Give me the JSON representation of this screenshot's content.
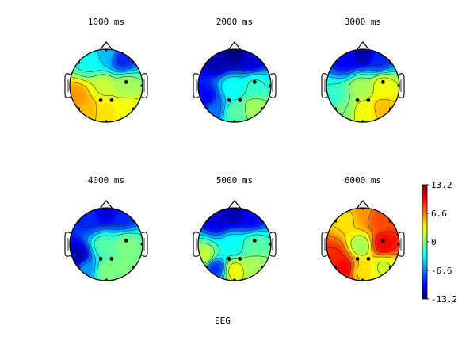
{
  "chart_data": {
    "type": "heatmap",
    "subtype": "eeg-scalp-topography",
    "caption": "EEG",
    "colormap": "jet",
    "clim": [
      -13.2,
      13.2
    ],
    "colorbar": {
      "ticks": [
        13.2,
        6.6,
        0,
        -6.6,
        -13.2
      ],
      "tick_labels": [
        "13.2",
        "6.6",
        "0",
        "-6.6",
        "-13.2"
      ],
      "placement": "right"
    },
    "grid": false,
    "maps": [
      {
        "title": "1000 ms",
        "scalp_values": {
          "frontal_left": -3,
          "frontal_center": -5,
          "frontal_right": -9,
          "left_temporal": 6,
          "center": 2,
          "right": 1,
          "posterior_left": 5,
          "posterior_center": 4,
          "posterior_right": 3
        },
        "electrodes_marked": 3
      },
      {
        "title": "2000 ms",
        "scalp_values": {
          "frontal_left": -12,
          "frontal_center": -13,
          "frontal_right": -11,
          "left_temporal": -10,
          "center": -3,
          "right": -2,
          "posterior_left": -7,
          "posterior_center": -1,
          "posterior_right": 1
        },
        "electrodes_marked": 3
      },
      {
        "title": "3000 ms",
        "scalp_values": {
          "frontal_left": -10,
          "frontal_center": -12,
          "frontal_right": -9,
          "left_temporal": -2,
          "center": 1,
          "right": 3,
          "posterior_left": 0,
          "posterior_center": 3,
          "posterior_right": 5
        },
        "electrodes_marked": 3
      },
      {
        "title": "4000 ms",
        "scalp_values": {
          "frontal_left": -9,
          "frontal_center": -11,
          "frontal_right": -9,
          "left_temporal": -12,
          "center": -1,
          "right": 0,
          "posterior_left": -6,
          "posterior_center": 0,
          "posterior_right": 0
        },
        "electrodes_marked": 3
      },
      {
        "title": "5000 ms",
        "scalp_values": {
          "frontal_left": -11,
          "frontal_center": -12,
          "frontal_right": -10,
          "left_temporal": 2,
          "center": -3,
          "right": -1,
          "posterior_left": -9,
          "posterior_center": 3,
          "posterior_right": 1
        },
        "electrodes_marked": 3
      },
      {
        "title": "6000 ms",
        "scalp_values": {
          "frontal_left": 4,
          "frontal_center": 6,
          "frontal_right": 8,
          "left_temporal": 9,
          "center": 1,
          "right": 10,
          "posterior_left": 10,
          "posterior_center": 4,
          "posterior_right": 2
        },
        "electrodes_marked": 3
      }
    ]
  }
}
